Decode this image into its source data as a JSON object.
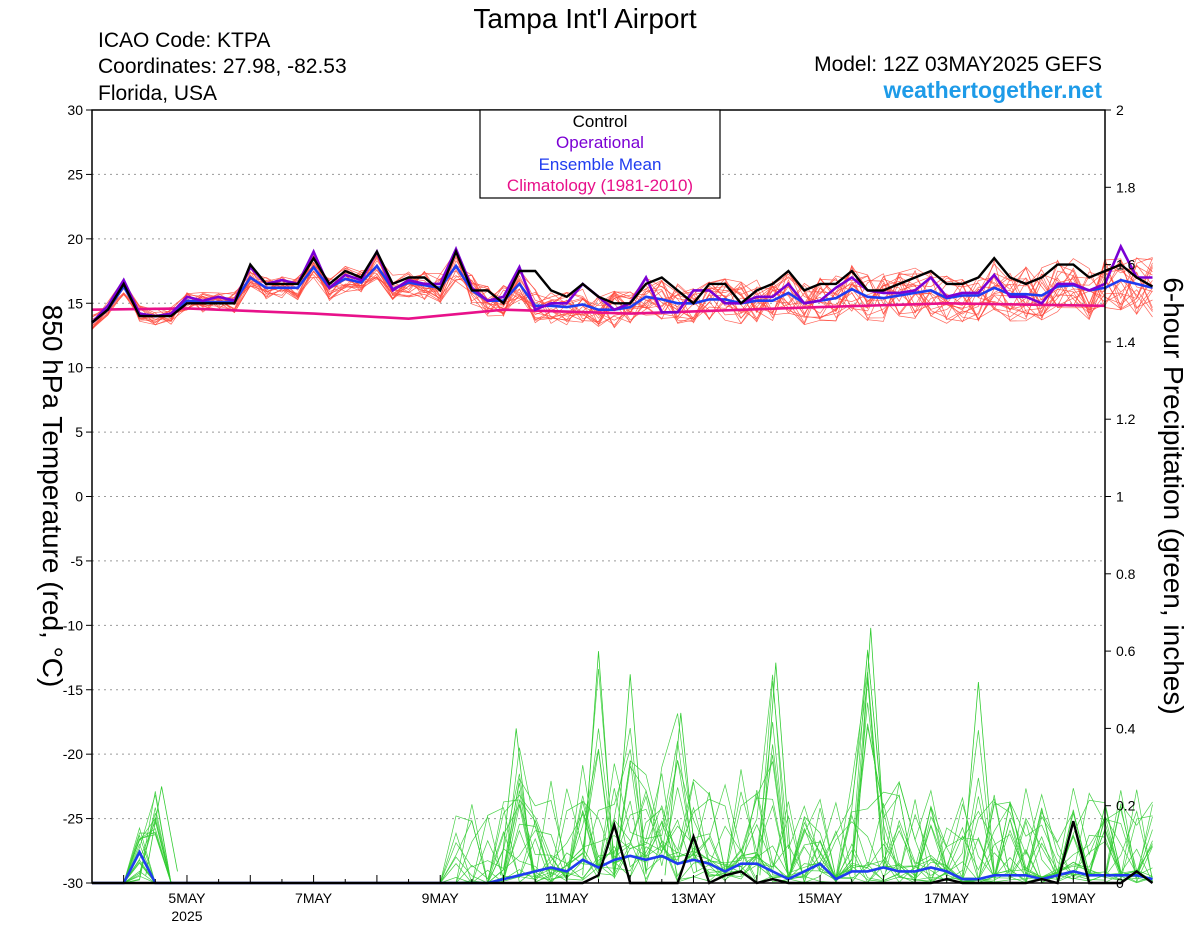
{
  "header": {
    "title": "Tampa Int'l Airport",
    "icao": "ICAO Code: KTPA",
    "coords": "Coordinates: 27.98, -82.53",
    "region": "Florida, USA",
    "model": "Model: 12Z 03MAY2025 GEFS",
    "site": "weathertogether.net"
  },
  "legend": {
    "items": [
      {
        "label": "Control",
        "color": "#000000"
      },
      {
        "label": "Operational",
        "color": "#7b00d4"
      },
      {
        "label": "Ensemble Mean",
        "color": "#1f3cf0"
      },
      {
        "label": "Climatology (1981-2010)",
        "color": "#e8118a"
      }
    ]
  },
  "colors": {
    "members_temp": "#ff4a3d",
    "members_precip": "#33cc33",
    "control": "#000000",
    "operational": "#7b00d4",
    "mean": "#1f3cf0",
    "climatology": "#e8118a",
    "site": "#1e9be8"
  },
  "chart_data": {
    "type": "line",
    "title": "Tampa Int'l Airport",
    "ylabel": "850 hPa Temperature (red, °C)",
    "y2label": "6-hour Precipitation (green, inches)",
    "ylim": [
      -30,
      30
    ],
    "y2lim": [
      0,
      2
    ],
    "yticks": [
      30,
      25,
      20,
      15,
      10,
      5,
      0,
      -5,
      -10,
      -15,
      -20,
      -25,
      -30
    ],
    "y2ticks": [
      2,
      1.8,
      1.6,
      1.4,
      1.2,
      1,
      0.8,
      0.6,
      0.4,
      0.2,
      0
    ],
    "grid": true,
    "x_unit": "day of May 2025 (6-hour steps)",
    "xlim": [
      3.5,
      19.5
    ],
    "xticks": [
      {
        "day": 5,
        "label": "5MAY",
        "sub": "2025"
      },
      {
        "day": 7,
        "label": "7MAY"
      },
      {
        "day": 9,
        "label": "9MAY"
      },
      {
        "day": 11,
        "label": "11MAY"
      },
      {
        "day": 13,
        "label": "13MAY"
      },
      {
        "day": 15,
        "label": "15MAY"
      },
      {
        "day": 17,
        "label": "17MAY"
      },
      {
        "day": 19,
        "label": "19MAY"
      }
    ],
    "temperature": {
      "control": [
        13.5,
        14.5,
        16.5,
        14,
        14,
        14,
        15,
        15,
        15,
        15,
        18,
        16.5,
        16.5,
        16.5,
        18.5,
        16.5,
        17.5,
        17,
        19,
        16.5,
        17,
        17,
        16,
        19,
        16,
        16,
        15,
        17.5,
        17.5,
        16,
        15.5,
        16.5,
        15.5,
        15,
        15,
        16.5,
        17,
        16,
        15,
        16.5,
        16.5,
        15,
        16,
        16.5,
        17.5,
        16,
        16.5,
        16.5,
        17.5,
        16,
        16,
        16.5,
        17,
        17.5,
        16.5,
        16.5,
        17,
        18.5,
        17,
        16.5,
        17,
        18,
        18,
        17,
        17.5,
        18,
        17,
        16.3
      ],
      "operational": [
        13.5,
        14.8,
        16.8,
        14.2,
        14,
        14.2,
        15.5,
        15.2,
        15.5,
        15.2,
        17.8,
        16.5,
        16.8,
        16.5,
        19,
        16.2,
        17.2,
        16.8,
        19,
        16,
        16.8,
        16.5,
        16.5,
        19.2,
        16.2,
        15.2,
        15.5,
        17.8,
        14.5,
        15,
        15,
        16.5,
        15.5,
        14.5,
        15,
        17,
        14.3,
        14.3,
        16,
        16,
        15,
        15,
        15.5,
        15.5,
        16.5,
        15,
        15.2,
        16.2,
        17,
        16,
        15.8,
        15.8,
        16,
        17,
        15.5,
        15.8,
        15.8,
        17.2,
        15.5,
        15.5,
        15,
        16.5,
        16.5,
        16,
        16.5,
        19.4,
        17,
        17
      ],
      "mean": [
        13.5,
        14.5,
        16.3,
        14.2,
        14,
        14.1,
        15.2,
        15.1,
        15.1,
        15.1,
        17,
        16.2,
        16.2,
        16.2,
        17.8,
        16.2,
        16.9,
        16.6,
        17.9,
        16.1,
        16.6,
        16.4,
        16.2,
        17.9,
        16,
        15.2,
        15.2,
        16.5,
        14.8,
        14.8,
        14.7,
        14.9,
        14.5,
        14.5,
        14.7,
        15.5,
        15.3,
        15,
        15,
        15.3,
        15.3,
        15,
        15.2,
        15.2,
        15.8,
        15,
        15.2,
        15.4,
        16.1,
        15.5,
        15.4,
        15.6,
        15.8,
        16,
        15.4,
        15.6,
        15.6,
        16.2,
        15.7,
        15.7,
        15.6,
        16.3,
        16.4,
        16,
        16.2,
        16.8,
        16.5,
        16.2
      ],
      "climatology": {
        "x": [
          3.5,
          5,
          7,
          8.5,
          10,
          12,
          15,
          17,
          19.5
        ],
        "values": [
          14.5,
          14.6,
          14.2,
          13.8,
          14.5,
          14.2,
          14.7,
          15,
          14.8
        ]
      }
    },
    "precipitation": {
      "control": [
        0,
        0,
        0,
        0,
        0,
        0,
        0,
        0,
        0,
        0,
        0,
        0,
        0,
        0,
        0,
        0,
        0,
        0,
        0,
        0,
        0,
        0,
        0,
        0,
        0,
        0,
        0,
        0,
        0,
        0,
        0,
        0,
        0.02,
        0.15,
        0,
        0,
        0,
        0,
        0.12,
        0,
        0.02,
        0.03,
        0,
        0.01,
        0,
        0,
        0,
        0,
        0,
        0,
        0,
        0,
        0,
        0,
        0.01,
        0,
        0,
        0,
        0,
        0,
        0.01,
        0,
        0.16,
        0,
        0,
        0,
        0.03,
        0
      ],
      "mean": [
        0,
        0,
        0,
        0.08,
        0,
        0,
        0,
        0,
        0,
        0,
        0,
        0,
        0,
        0,
        0,
        0,
        0,
        0,
        0,
        0,
        0,
        0,
        0,
        0,
        0,
        0,
        0.01,
        0.02,
        0.03,
        0.04,
        0.03,
        0.06,
        0.04,
        0.06,
        0.07,
        0.06,
        0.07,
        0.05,
        0.06,
        0.05,
        0.03,
        0.05,
        0.05,
        0.03,
        0.01,
        0.03,
        0.05,
        0.01,
        0.03,
        0.03,
        0.04,
        0.03,
        0.03,
        0.04,
        0.03,
        0.01,
        0.01,
        0.02,
        0.02,
        0.02,
        0.01,
        0.02,
        0.03,
        0.02,
        0.02,
        0.02,
        0.02,
        0.01
      ],
      "member_peaks": [
        {
          "day": 4.6,
          "value": 0.25
        },
        {
          "day": 10.2,
          "value": 0.4
        },
        {
          "day": 11.5,
          "value": 0.6
        },
        {
          "day": 12.0,
          "value": 0.54
        },
        {
          "day": 12.8,
          "value": 0.44
        },
        {
          "day": 14.3,
          "value": 0.57
        },
        {
          "day": 15.8,
          "value": 0.66
        },
        {
          "day": 17.5,
          "value": 0.52
        },
        {
          "day": 19.5,
          "value": 0.2
        }
      ]
    }
  }
}
